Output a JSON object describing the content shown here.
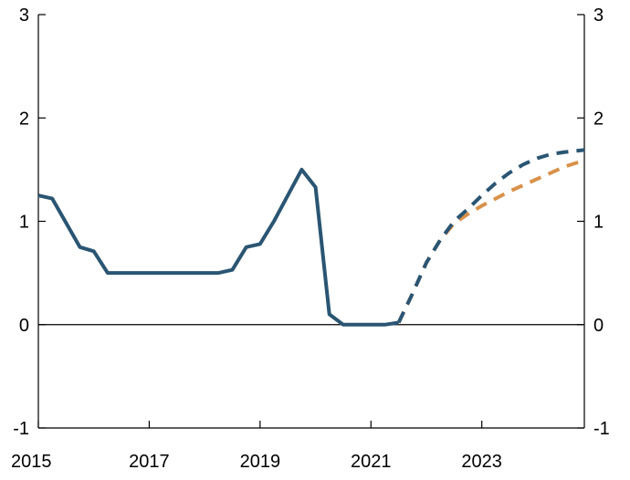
{
  "chart_data": {
    "type": "line",
    "title": "",
    "xlabel": "",
    "ylabel": "",
    "xlim": [
      2015.0,
      2024.85
    ],
    "ylim": [
      -1,
      3
    ],
    "x_ticks": [
      2015,
      2017,
      2019,
      2021,
      2023
    ],
    "x_tick_labels": [
      "2015",
      "2017",
      "2019",
      "2021",
      "2023"
    ],
    "y_ticks": [
      -1,
      0,
      1,
      2,
      3
    ],
    "y_tick_labels": [
      "-1",
      "0",
      "1",
      "2",
      "3"
    ],
    "grid": false,
    "legend": "none",
    "series": [
      {
        "style": "solid",
        "color": "#2a5573",
        "points": [
          [
            2015.0,
            1.25
          ],
          [
            2015.25,
            1.22
          ],
          [
            2015.75,
            0.75
          ],
          [
            2016.0,
            0.71
          ],
          [
            2016.25,
            0.5
          ],
          [
            2017.0,
            0.5
          ],
          [
            2018.0,
            0.5
          ],
          [
            2018.25,
            0.5
          ],
          [
            2018.5,
            0.53
          ],
          [
            2018.75,
            0.75
          ],
          [
            2019.0,
            0.78
          ],
          [
            2019.25,
            1.0
          ],
          [
            2019.5,
            1.25
          ],
          [
            2019.75,
            1.5
          ],
          [
            2020.0,
            1.33
          ],
          [
            2020.25,
            0.1
          ],
          [
            2020.5,
            0.0
          ],
          [
            2021.0,
            0.0
          ],
          [
            2021.25,
            0.0
          ],
          [
            2021.5,
            0.02
          ]
        ]
      },
      {
        "style": "dashed",
        "color": "#2a5573",
        "points": [
          [
            2021.5,
            0.02
          ],
          [
            2021.75,
            0.3
          ],
          [
            2022.0,
            0.6
          ],
          [
            2022.25,
            0.82
          ],
          [
            2022.5,
            1.0
          ],
          [
            2022.75,
            1.12
          ],
          [
            2023.0,
            1.25
          ],
          [
            2023.25,
            1.37
          ],
          [
            2023.5,
            1.47
          ],
          [
            2023.75,
            1.55
          ],
          [
            2024.0,
            1.61
          ],
          [
            2024.25,
            1.65
          ],
          [
            2024.5,
            1.67
          ],
          [
            2024.85,
            1.69
          ]
        ]
      },
      {
        "style": "dashed",
        "color": "#d9914a",
        "points": [
          [
            2021.5,
            0.02
          ],
          [
            2021.75,
            0.3
          ],
          [
            2022.0,
            0.6
          ],
          [
            2022.25,
            0.82
          ],
          [
            2022.5,
            0.98
          ],
          [
            2022.75,
            1.07
          ],
          [
            2023.0,
            1.15
          ],
          [
            2023.25,
            1.22
          ],
          [
            2023.5,
            1.29
          ],
          [
            2023.75,
            1.35
          ],
          [
            2024.0,
            1.41
          ],
          [
            2024.25,
            1.47
          ],
          [
            2024.5,
            1.53
          ],
          [
            2024.85,
            1.59
          ]
        ]
      }
    ]
  }
}
